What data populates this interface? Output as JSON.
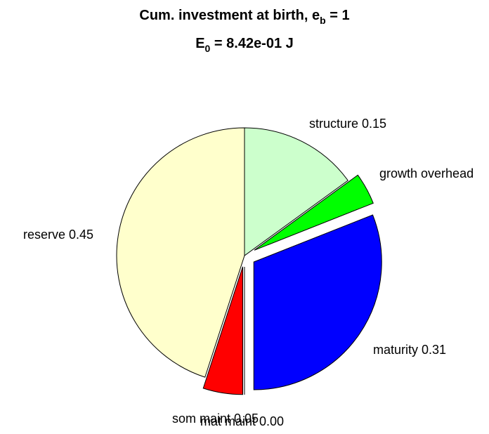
{
  "chart_data": {
    "type": "pie",
    "title": {
      "line1_prefix": "Cum. investment at birth, e",
      "line1_sub": "b",
      "line1_suffix": " = 1",
      "line2_prefix": "E",
      "line2_sub": "0",
      "line2_suffix": " = 8.42e-01 J"
    },
    "slices": [
      {
        "name": "structure",
        "value": 0.15,
        "label": "structure 0.15",
        "color": "#ccffcc",
        "exploded": false
      },
      {
        "name": "growth overhead",
        "value": 0.04,
        "label": "growth overhead",
        "color": "#00ff00",
        "exploded": true
      },
      {
        "name": "maturity",
        "value": 0.31,
        "label": "maturity 0.31",
        "color": "#0000ff",
        "exploded": true
      },
      {
        "name": "mat maint",
        "value": 0.0,
        "label": "mat maint 0.00",
        "color": "#ff00ff",
        "exploded": true
      },
      {
        "name": "som maint",
        "value": 0.05,
        "label": "som maint 0.05",
        "color": "#ff0000",
        "exploded": true
      },
      {
        "name": "reserve",
        "value": 0.45,
        "label": "reserve 0.45",
        "color": "#ffffcc",
        "exploded": false
      }
    ]
  }
}
